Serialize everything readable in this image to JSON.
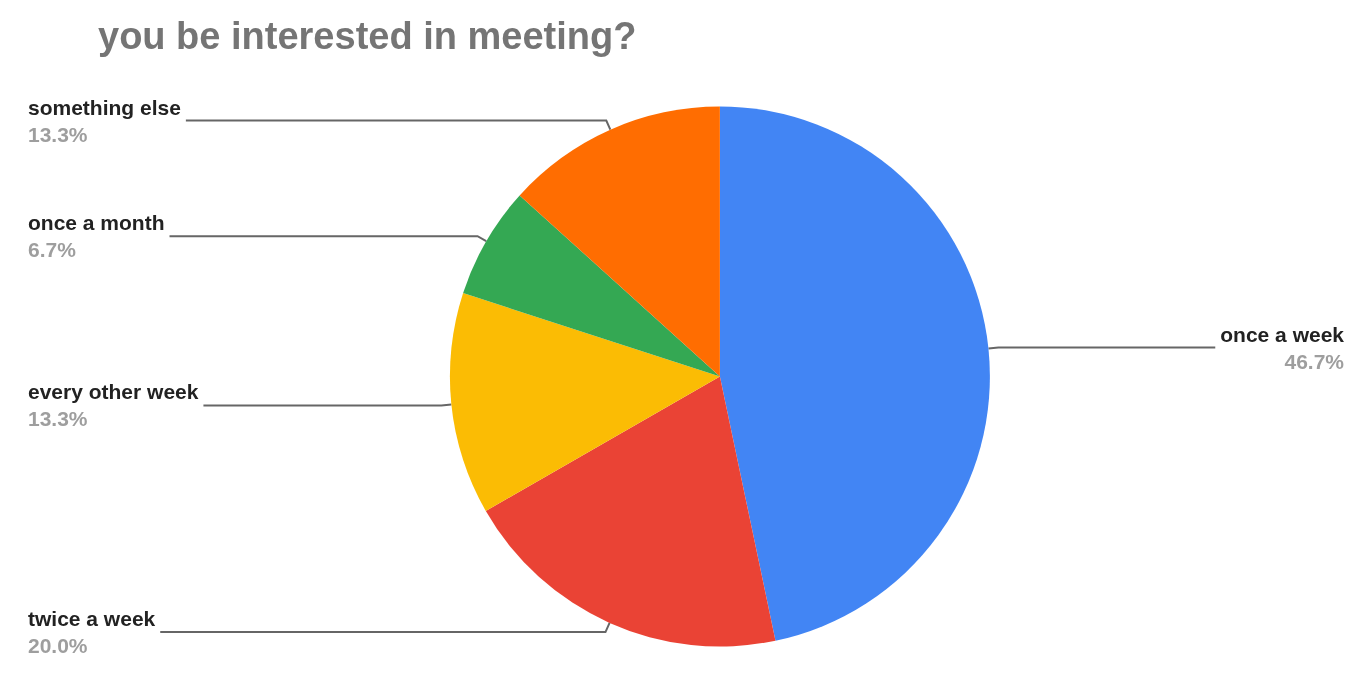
{
  "chart_data": {
    "type": "pie",
    "title": "you be interested in meeting?",
    "categories": [
      "once a week",
      "twice a week",
      "every other week",
      "once a month",
      "something else"
    ],
    "values": [
      46.7,
      20.0,
      13.3,
      6.7,
      13.3
    ],
    "value_labels": [
      "46.7%",
      "20.0%",
      "13.3%",
      "6.7%",
      "13.3%"
    ],
    "colors": [
      "#4285f4",
      "#ea4335",
      "#fbbc04",
      "#34a853",
      "#ff6d01"
    ],
    "legend": false
  }
}
